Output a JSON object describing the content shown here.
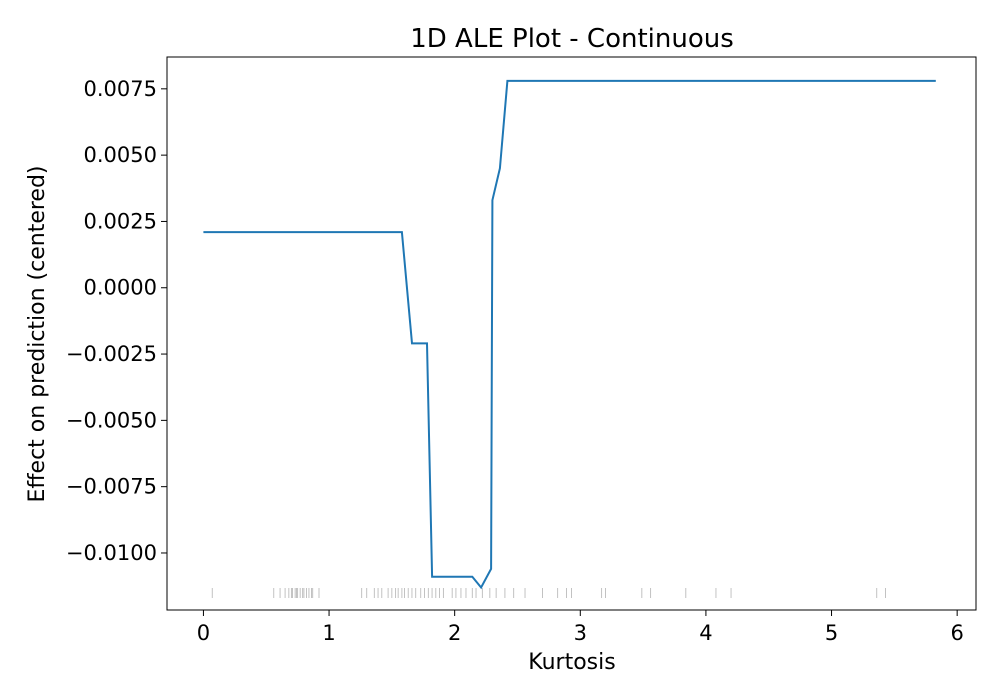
{
  "chart_data": {
    "type": "line",
    "title": "1D ALE Plot - Continuous",
    "xlabel": "Kurtosis",
    "ylabel": "Effect on prediction (centered)",
    "xlim": [
      -0.29,
      6.15
    ],
    "ylim": [
      -0.01215,
      0.0087
    ],
    "x_ticks": [
      0,
      1,
      2,
      3,
      4,
      5,
      6
    ],
    "x_tick_labels": [
      "0",
      "1",
      "2",
      "3",
      "4",
      "5",
      "6"
    ],
    "y_ticks": [
      0.0075,
      0.005,
      0.0025,
      0.0,
      -0.0025,
      -0.005,
      -0.0075,
      -0.01
    ],
    "y_tick_labels": [
      "0.0075",
      "0.0050",
      "0.0025",
      "0.0000",
      "−0.0025",
      "−0.0050",
      "−0.0075",
      "−0.0100"
    ],
    "grid": false,
    "series": [
      {
        "color": "#1f77b4",
        "x": [
          0.0,
          1.58,
          1.66,
          1.78,
          1.82,
          2.14,
          2.21,
          2.29,
          2.3,
          2.36,
          2.42,
          5.83
        ],
        "y": [
          0.0021,
          0.0021,
          -0.0021,
          -0.0021,
          -0.0109,
          -0.0109,
          -0.0113,
          -0.0106,
          0.0033,
          0.0045,
          0.0078,
          0.0078
        ]
      }
    ],
    "rug": [
      0.07,
      0.56,
      0.61,
      0.65,
      0.68,
      0.7,
      0.71,
      0.73,
      0.74,
      0.75,
      0.77,
      0.79,
      0.8,
      0.82,
      0.84,
      0.86,
      0.87,
      0.92,
      1.26,
      1.3,
      1.36,
      1.39,
      1.42,
      1.47,
      1.5,
      1.53,
      1.55,
      1.58,
      1.6,
      1.63,
      1.66,
      1.69,
      1.73,
      1.76,
      1.79,
      1.82,
      1.85,
      1.88,
      1.91,
      1.98,
      2.01,
      2.05,
      2.09,
      2.14,
      2.17,
      2.22,
      2.28,
      2.33,
      2.4,
      2.47,
      2.56,
      2.7,
      2.82,
      2.89,
      2.93,
      3.17,
      3.2,
      3.49,
      3.56,
      3.84,
      4.08,
      4.2,
      5.36,
      5.43
    ]
  }
}
